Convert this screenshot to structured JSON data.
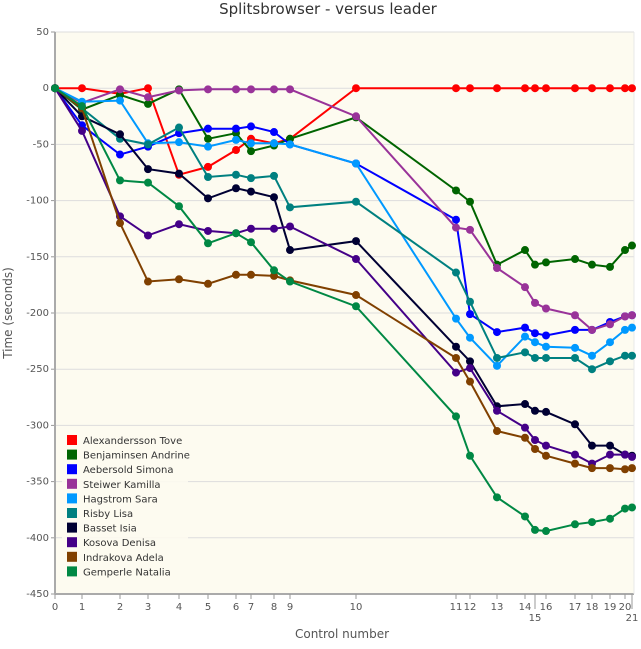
{
  "chart_data": {
    "type": "line",
    "title": "Splitsbrowser - versus leader",
    "xlabel": "Control number",
    "ylabel": "Time (seconds)",
    "ylim": [
      -450,
      50
    ],
    "yticks": [
      50,
      0,
      -50,
      -100,
      -150,
      -200,
      -250,
      -300,
      -350,
      -400,
      -450
    ],
    "x": [
      0,
      1,
      2,
      3,
      4,
      5,
      6,
      7,
      8,
      9,
      10,
      11,
      12,
      13,
      14,
      15,
      16,
      17,
      18,
      19,
      20,
      21
    ],
    "grid": "horizontal",
    "legend_placement": "bottom-left",
    "series": [
      {
        "name": "Alexandersson Tove",
        "color": "#ff0000",
        "values": [
          0,
          0,
          -5,
          0,
          -77,
          -70,
          -55,
          -45,
          -49,
          -45,
          0,
          0,
          0,
          0,
          0,
          0,
          0,
          0,
          0,
          0,
          0,
          0
        ]
      },
      {
        "name": "Benjaminsen Andrine",
        "color": "#006400",
        "values": [
          0,
          -19,
          -6,
          -14,
          -1,
          -45,
          -40,
          -56,
          -51,
          -45,
          -26,
          -91,
          -101,
          -157,
          -144,
          -157,
          -155,
          -152,
          -157,
          -159,
          -144,
          -140
        ]
      },
      {
        "name": "Aebersold Simona",
        "color": "#0000ff",
        "values": [
          0,
          -33,
          -59,
          -52,
          -40,
          -36,
          -36,
          -34,
          -39,
          -50,
          -67,
          -117,
          -201,
          -217,
          -213,
          -218,
          -220,
          -215,
          -215,
          -208,
          -203,
          -202
        ]
      },
      {
        "name": "Steiwer Kamilla",
        "color": "#993399",
        "values": [
          0,
          -13,
          -1,
          -8,
          -2,
          -1,
          -1,
          -1,
          -1,
          -1,
          -25,
          -124,
          -126,
          -160,
          -177,
          -191,
          -196,
          -202,
          -215,
          -210,
          -203,
          -202
        ]
      },
      {
        "name": "Hagstrom Sara",
        "color": "#0099ff",
        "values": [
          0,
          -12,
          -11,
          -49,
          -48,
          -52,
          -46,
          -49,
          -49,
          -50,
          -67,
          -205,
          -222,
          -247,
          -221,
          -226,
          -230,
          -231,
          -238,
          -226,
          -215,
          -213
        ]
      },
      {
        "name": "Risby Lisa",
        "color": "#008080",
        "values": [
          0,
          -18,
          -45,
          -50,
          -35,
          -79,
          -77,
          -80,
          -78,
          -106,
          -101,
          -164,
          -190,
          -240,
          -235,
          -240,
          -240,
          -240,
          -250,
          -243,
          -238,
          -238
        ]
      },
      {
        "name": "Basset Isia",
        "color": "#000033",
        "values": [
          0,
          -25,
          -41,
          -72,
          -76,
          -98,
          -89,
          -92,
          -97,
          -144,
          -136,
          -230,
          -243,
          -283,
          -281,
          -287,
          -288,
          -299,
          -318,
          -318,
          -326,
          -327
        ]
      },
      {
        "name": "Kosova Denisa",
        "color": "#440088",
        "values": [
          0,
          -38,
          -114,
          -131,
          -121,
          -127,
          -129,
          -125,
          -125,
          -123,
          -152,
          -253,
          -249,
          -287,
          -302,
          -313,
          -318,
          -326,
          -334,
          -326,
          -326,
          -328
        ]
      },
      {
        "name": "Indrakova Adela",
        "color": "#804000",
        "values": [
          0,
          -18,
          -120,
          -172,
          -170,
          -174,
          -166,
          -166,
          -167,
          -171,
          -184,
          -240,
          -261,
          -305,
          -311,
          -321,
          -327,
          -334,
          -338,
          -338,
          -339,
          -338
        ]
      },
      {
        "name": "Gemperle Natalia",
        "color": "#008844",
        "values": [
          0,
          -16,
          -82,
          -84,
          -105,
          -138,
          -129,
          -137,
          -162,
          -172,
          -194,
          -292,
          -327,
          -364,
          -381,
          -393,
          -394,
          -388,
          -386,
          -383,
          -374,
          -373
        ]
      }
    ]
  }
}
